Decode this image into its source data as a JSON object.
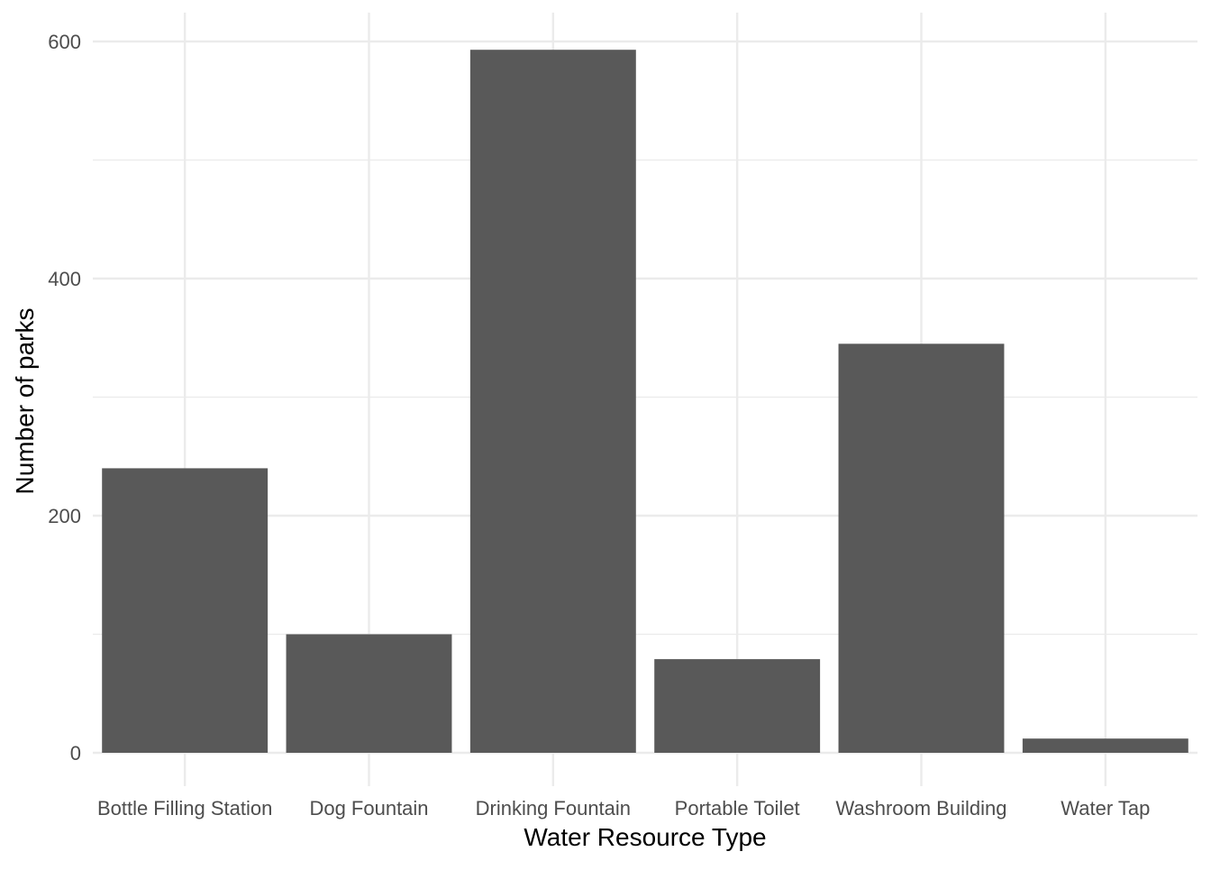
{
  "chart_data": {
    "type": "bar",
    "title": "",
    "xlabel": "Water Resource Type",
    "ylabel": "Number of parks",
    "categories": [
      "Bottle Filling Station",
      "Dog Fountain",
      "Drinking Fountain",
      "Portable Toilet",
      "Washroom Building",
      "Water Tap"
    ],
    "values": [
      240,
      100,
      593,
      79,
      345,
      12
    ],
    "ylim": [
      0,
      600
    ],
    "yticks": [
      "0",
      "200",
      "400",
      "600"
    ],
    "grid": true,
    "bar_color": "#595959",
    "grid_color": "#ebebeb"
  }
}
